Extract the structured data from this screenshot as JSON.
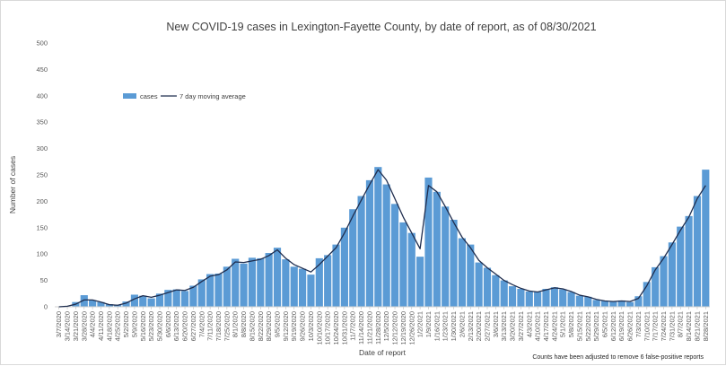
{
  "chart_data": {
    "type": "bar",
    "title": "New COVID-19 cases in Lexington-Fayette County, by date of report, as of 08/30/2021",
    "xlabel": "Date of report",
    "ylabel": "Number of cases",
    "ylim": [
      0,
      500
    ],
    "yticks": [
      0,
      50,
      100,
      150,
      200,
      250,
      300,
      350,
      400,
      450,
      500
    ],
    "grid": false,
    "legend_position": "top-left",
    "note": "Counts have been adjusted to remove 6 false-positive reports",
    "colors": {
      "bars": "#5b9bd5",
      "line": "#1f2d4e"
    },
    "x": [
      "3/7/2020",
      "3/14/2020",
      "3/21/2020",
      "3/28/2020",
      "4/4/2020",
      "4/11/2020",
      "4/18/2020",
      "4/25/2020",
      "5/2/2020",
      "5/9/2020",
      "5/16/2020",
      "5/23/2020",
      "5/30/2020",
      "6/6/2020",
      "6/13/2020",
      "6/20/2020",
      "6/27/2020",
      "7/4/2020",
      "7/11/2020",
      "7/18/2020",
      "7/25/2020",
      "8/1/2020",
      "8/8/2020",
      "8/15/2020",
      "8/22/2020",
      "8/29/2020",
      "9/5/2020",
      "9/12/2020",
      "9/19/2020",
      "9/26/2020",
      "10/3/2020",
      "10/10/2020",
      "10/17/2020",
      "10/24/2020",
      "10/31/2020",
      "11/7/2020",
      "11/14/2020",
      "11/21/2020",
      "11/28/2020",
      "12/5/2020",
      "12/12/2020",
      "12/19/2020",
      "12/26/2020",
      "1/2/2021",
      "1/9/2021",
      "1/16/2021",
      "1/23/2021",
      "1/30/2021",
      "2/6/2021",
      "2/13/2021",
      "2/20/2021",
      "2/27/2021",
      "3/6/2021",
      "3/13/2021",
      "3/20/2021",
      "3/27/2021",
      "4/3/2021",
      "4/10/2021",
      "4/17/2021",
      "4/24/2021",
      "5/1/2021",
      "5/8/2021",
      "5/15/2021",
      "5/22/2021",
      "5/29/2021",
      "6/5/2021",
      "6/12/2021",
      "6/19/2021",
      "6/26/2021",
      "7/3/2021",
      "7/10/2021",
      "7/17/2021",
      "7/24/2021",
      "7/31/2021",
      "8/7/2021",
      "8/14/2021",
      "8/21/2021",
      "8/28/2021"
    ],
    "series": [
      {
        "name": "cases",
        "type": "bar",
        "values": [
          0,
          1,
          9,
          22,
          12,
          9,
          5,
          4,
          10,
          23,
          21,
          16,
          25,
          32,
          33,
          30,
          40,
          52,
          62,
          63,
          76,
          91,
          82,
          93,
          92,
          102,
          112,
          90,
          76,
          72,
          61,
          92,
          98,
          118,
          150,
          185,
          210,
          240,
          265,
          232,
          195,
          160,
          140,
          95,
          245,
          218,
          190,
          165,
          130,
          118,
          84,
          74,
          60,
          50,
          39,
          34,
          29,
          28,
          34,
          37,
          33,
          28,
          21,
          19,
          13,
          11,
          10,
          12,
          9,
          20,
          47,
          75,
          96,
          122,
          152,
          172,
          210,
          260
        ]
      },
      {
        "name": "7 day moving average",
        "type": "line",
        "values": [
          0,
          1,
          5,
          13,
          13,
          9,
          4,
          3,
          7,
          15,
          21,
          18,
          22,
          27,
          32,
          31,
          37,
          48,
          58,
          61,
          70,
          85,
          84,
          87,
          90,
          97,
          108,
          92,
          80,
          73,
          66,
          80,
          96,
          112,
          140,
          172,
          202,
          232,
          260,
          240,
          205,
          170,
          140,
          110,
          230,
          218,
          190,
          160,
          132,
          112,
          88,
          74,
          62,
          50,
          42,
          35,
          30,
          28,
          32,
          36,
          34,
          29,
          22,
          19,
          14,
          11,
          10,
          11,
          10,
          16,
          40,
          70,
          92,
          118,
          145,
          170,
          205,
          230
        ]
      }
    ]
  }
}
